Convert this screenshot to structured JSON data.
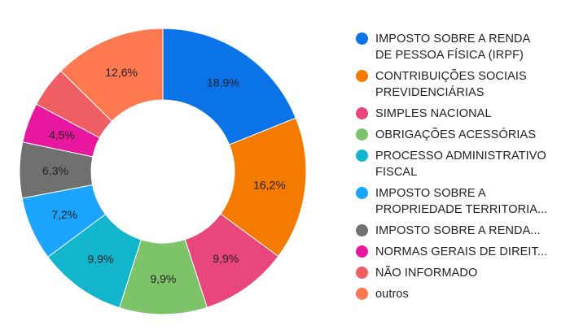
{
  "chart_data": {
    "type": "pie",
    "donut": true,
    "title": "",
    "legend_position": "right",
    "slices": [
      {
        "label": "IMPOSTO SOBRE A RENDA\nDE PESSOA FÍSICA (IRPF)",
        "value": 18.9,
        "display": "18,9%",
        "color": "#0a73e8"
      },
      {
        "label": "CONTRIBUIÇÕES SOCIAIS\nPREVIDENCIÁRIAS",
        "value": 16.2,
        "display": "16,2%",
        "color": "#f47a00"
      },
      {
        "label": "SIMPLES NACIONAL",
        "value": 9.9,
        "display": "9,9%",
        "color": "#e8467c"
      },
      {
        "label": "OBRIGAÇÕES ACESSÓRIAS",
        "value": 9.9,
        "display": "9,9%",
        "color": "#7cc36a"
      },
      {
        "label": "PROCESSO ADMINISTRATIVO\nFISCAL",
        "value": 9.9,
        "display": "9,9%",
        "color": "#12b5cb"
      },
      {
        "label": "IMPOSTO SOBRE A\nPROPRIEDADE TERRITORIA...",
        "value": 7.2,
        "display": "7,2%",
        "color": "#1aa3ff"
      },
      {
        "label": "IMPOSTO SOBRE A RENDA...",
        "value": 6.3,
        "display": "6,3%",
        "color": "#707070"
      },
      {
        "label": "NORMAS GERAIS DE DIREIT...",
        "value": 4.5,
        "display": "4,5%",
        "color": "#e7179f"
      },
      {
        "label": "NÃO INFORMADO",
        "value": 4.6,
        "display": "",
        "color": "#ef5e63"
      },
      {
        "label": "outros",
        "value": 12.6,
        "display": "12,6%",
        "color": "#ff7950"
      }
    ]
  }
}
